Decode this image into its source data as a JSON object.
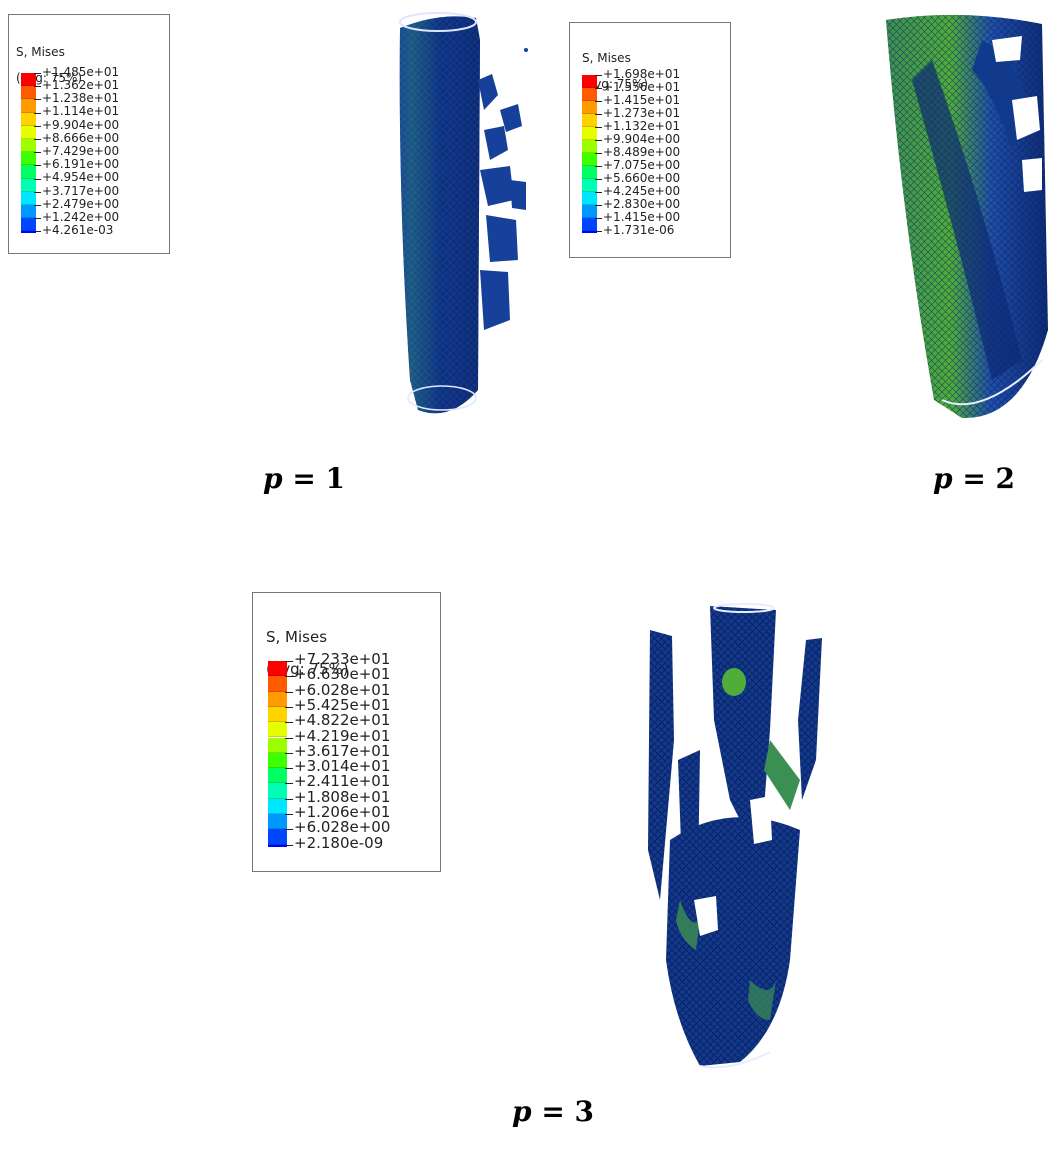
{
  "panels": [
    {
      "caption_var": "p",
      "caption_eq": " = ",
      "caption_num": "1",
      "legend": {
        "title_line1": "S, Mises",
        "title_line2": "(Avg: 75%)",
        "values": [
          "+1.485e+01",
          "+1.362e+01",
          "+1.238e+01",
          "+1.114e+01",
          "+9.904e+00",
          "+8.666e+00",
          "+7.429e+00",
          "+6.191e+00",
          "+4.954e+00",
          "+3.717e+00",
          "+2.479e+00",
          "+1.242e+00",
          "+4.261e-03"
        ]
      }
    },
    {
      "caption_var": "p",
      "caption_eq": " = ",
      "caption_num": "2",
      "legend": {
        "title_line1": "S, Mises",
        "title_line2": "(Avg: 75%)",
        "values": [
          "+1.698e+01",
          "+1.556e+01",
          "+1.415e+01",
          "+1.273e+01",
          "+1.132e+01",
          "+9.904e+00",
          "+8.489e+00",
          "+7.075e+00",
          "+5.660e+00",
          "+4.245e+00",
          "+2.830e+00",
          "+1.415e+00",
          "+1.731e-06"
        ]
      }
    },
    {
      "caption_var": "p",
      "caption_eq": " = ",
      "caption_num": "3",
      "legend": {
        "title_line1": "S, Mises",
        "title_line2": "(Avg: 75%)",
        "values": [
          "+7.233e+01",
          "+6.630e+01",
          "+6.028e+01",
          "+5.425e+01",
          "+4.822e+01",
          "+4.219e+01",
          "+3.617e+01",
          "+3.014e+01",
          "+2.411e+01",
          "+1.808e+01",
          "+1.206e+01",
          "+6.028e+00",
          "+2.180e-09"
        ]
      }
    }
  ],
  "colors": {
    "contour_bands": [
      "#ff0000",
      "#ff5a00",
      "#ff9a00",
      "#ffd200",
      "#e6ff00",
      "#9cff00",
      "#3cff00",
      "#00ff62",
      "#00ffb4",
      "#00e6ff",
      "#0098ff",
      "#0046ff",
      "#0000ff"
    ],
    "mesh_dark": "#0a1e74",
    "mesh_mid": "#1f4fa8",
    "stress_green": "#4fae3a"
  }
}
